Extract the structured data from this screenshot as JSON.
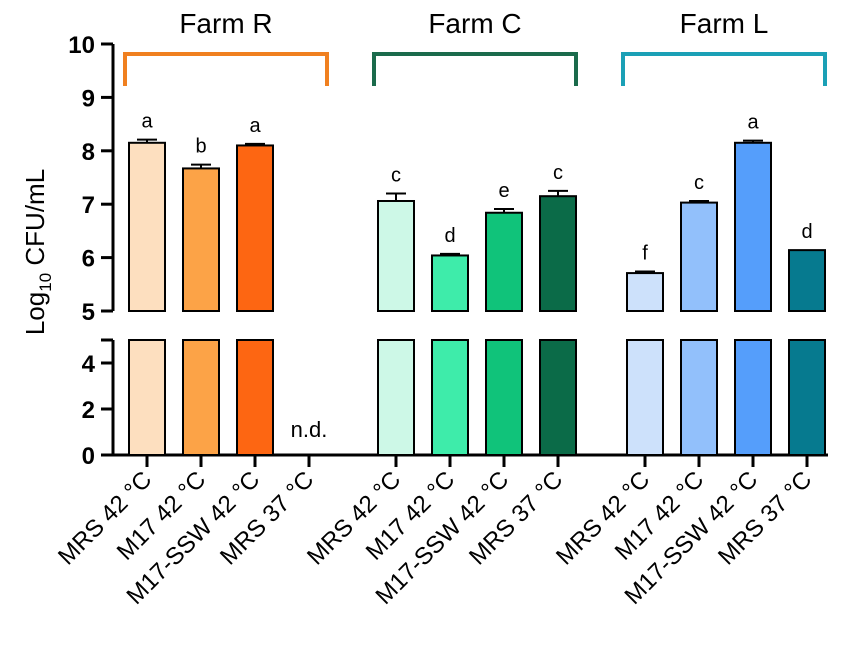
{
  "chart_data": {
    "type": "bar",
    "ylabel": "Log",
    "ylabel_sub": "10",
    "ylabel_unit": " CFU/mL",
    "axis_break": {
      "lower_range": [
        0,
        5
      ],
      "upper_range": [
        5,
        10
      ]
    },
    "lower_ticks": [
      {
        "value": 0,
        "label": "0"
      },
      {
        "value": 2,
        "label": "2"
      },
      {
        "value": 4,
        "label": "4"
      }
    ],
    "upper_ticks": [
      {
        "value": 5,
        "label": "5"
      },
      {
        "value": 6,
        "label": "6"
      },
      {
        "value": 7,
        "label": "7"
      },
      {
        "value": 8,
        "label": "8"
      },
      {
        "value": 9,
        "label": "9"
      },
      {
        "value": 10,
        "label": "10"
      }
    ],
    "groups": [
      {
        "name": "Farm R",
        "color": "#f08020",
        "bars": [
          {
            "label": "MRS 42 °C",
            "value": 8.15,
            "error": 0.06,
            "sig": "a",
            "color": "#fddfbf"
          },
          {
            "label": "M17 42 °C",
            "value": 7.67,
            "error": 0.07,
            "sig": "b",
            "color": "#fca347"
          },
          {
            "label": "M17-SSW 42 °C",
            "value": 8.1,
            "error": 0.03,
            "sig": "a",
            "color": "#fd6612"
          },
          {
            "label": "MRS 37 °C",
            "value": null,
            "error": 0,
            "sig": "",
            "color": "#ffffff",
            "note": "n.d."
          }
        ]
      },
      {
        "name": "Farm C",
        "color": "#1b6b4c",
        "bars": [
          {
            "label": "MRS 42 °C",
            "value": 7.06,
            "error": 0.14,
            "sig": "c",
            "color": "#cdf8e7"
          },
          {
            "label": "M17 42 °C",
            "value": 6.04,
            "error": 0.03,
            "sig": "d",
            "color": "#3eecaa"
          },
          {
            "label": "M17-SSW 42 °C",
            "value": 6.84,
            "error": 0.07,
            "sig": "e",
            "color": "#10c37a"
          },
          {
            "label": "MRS 37 °C",
            "value": 7.15,
            "error": 0.1,
            "sig": "c",
            "color": "#0b6b48"
          }
        ]
      },
      {
        "name": "Farm L",
        "color": "#1ba0b6",
        "bars": [
          {
            "label": "MRS 42 °C",
            "value": 5.71,
            "error": 0.03,
            "sig": "f",
            "color": "#cde1fb"
          },
          {
            "label": "M17 42 °C",
            "value": 7.03,
            "error": 0.03,
            "sig": "c",
            "color": "#92c0fb"
          },
          {
            "label": "M17-SSW 42 °C",
            "value": 8.15,
            "error": 0.04,
            "sig": "a",
            "color": "#559efb"
          },
          {
            "label": "MRS 37 °C",
            "value": 6.14,
            "error": 0.0,
            "sig": "d",
            "color": "#067a8f"
          }
        ]
      }
    ]
  }
}
